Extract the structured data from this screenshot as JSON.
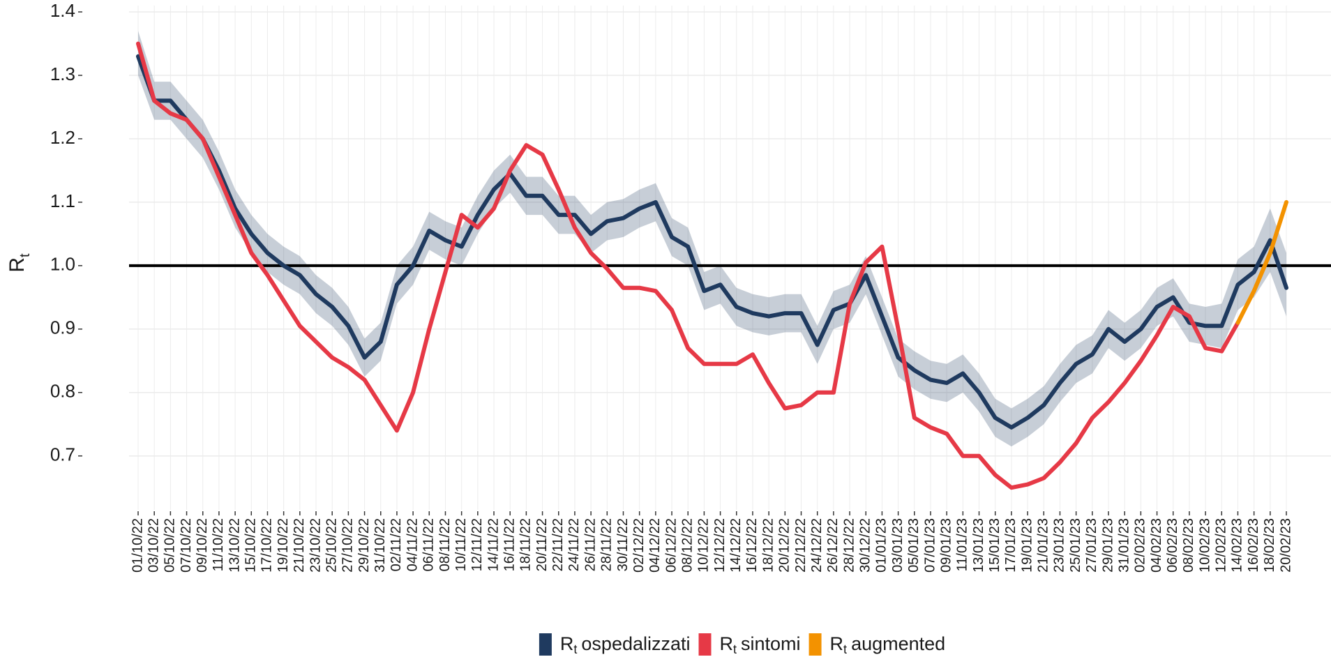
{
  "chart_data": {
    "type": "line",
    "y_label": {
      "text": "R",
      "sub": "t"
    },
    "categories": [
      "01/10/22",
      "03/10/22",
      "05/10/22",
      "07/10/22",
      "09/10/22",
      "11/10/22",
      "13/10/22",
      "15/10/22",
      "17/10/22",
      "19/10/22",
      "21/10/22",
      "23/10/22",
      "25/10/22",
      "27/10/22",
      "29/10/22",
      "31/10/22",
      "02/11/22",
      "04/11/22",
      "06/11/22",
      "08/11/22",
      "10/11/22",
      "12/11/22",
      "14/11/22",
      "16/11/22",
      "18/11/22",
      "20/11/22",
      "22/11/22",
      "24/11/22",
      "26/11/22",
      "28/11/22",
      "30/11/22",
      "02/12/22",
      "04/12/22",
      "06/12/22",
      "08/12/22",
      "10/12/22",
      "12/12/22",
      "14/12/22",
      "16/12/22",
      "18/12/22",
      "20/12/22",
      "22/12/22",
      "24/12/22",
      "26/12/22",
      "28/12/22",
      "30/12/22",
      "01/01/23",
      "03/01/23",
      "05/01/23",
      "07/01/23",
      "09/01/23",
      "11/01/23",
      "13/01/23",
      "15/01/23",
      "17/01/23",
      "19/01/23",
      "21/01/23",
      "23/01/23",
      "25/01/23",
      "27/01/23",
      "29/01/23",
      "31/01/23",
      "02/02/23",
      "04/02/23",
      "06/02/23",
      "08/02/23",
      "10/02/23",
      "12/02/23",
      "14/02/23",
      "16/02/23",
      "18/02/23",
      "20/02/23"
    ],
    "series": [
      {
        "name": {
          "text": "R",
          "sub": "t",
          "rest": "ospedalizzati"
        },
        "color": "#1f3a5f",
        "values": [
          1.33,
          1.26,
          1.26,
          1.23,
          1.2,
          1.15,
          1.09,
          1.05,
          1.02,
          1.0,
          0.985,
          0.955,
          0.935,
          0.905,
          0.855,
          0.88,
          0.97,
          1.0,
          1.055,
          1.04,
          1.03,
          1.08,
          1.12,
          1.145,
          1.11,
          1.11,
          1.08,
          1.08,
          1.05,
          1.07,
          1.075,
          1.09,
          1.1,
          1.045,
          1.03,
          0.96,
          0.97,
          0.935,
          0.925,
          0.92,
          0.925,
          0.925,
          0.875,
          0.93,
          0.94,
          0.985,
          0.92,
          0.855,
          0.835,
          0.82,
          0.815,
          0.83,
          0.8,
          0.76,
          0.745,
          0.76,
          0.78,
          0.815,
          0.845,
          0.86,
          0.9,
          0.88,
          0.9,
          0.935,
          0.95,
          0.91,
          0.905,
          0.905,
          0.97,
          0.99,
          1.04,
          0.965
        ],
        "lower": [
          1.3,
          1.23,
          1.23,
          1.2,
          1.17,
          1.12,
          1.06,
          1.02,
          0.99,
          0.97,
          0.955,
          0.925,
          0.905,
          0.875,
          0.825,
          0.85,
          0.94,
          0.97,
          1.025,
          1.01,
          1.0,
          1.05,
          1.09,
          1.115,
          1.08,
          1.08,
          1.05,
          1.05,
          1.02,
          1.04,
          1.045,
          1.06,
          1.07,
          1.015,
          1.0,
          0.93,
          0.94,
          0.905,
          0.895,
          0.89,
          0.895,
          0.895,
          0.845,
          0.9,
          0.91,
          0.955,
          0.89,
          0.825,
          0.805,
          0.79,
          0.785,
          0.8,
          0.77,
          0.73,
          0.715,
          0.73,
          0.75,
          0.785,
          0.815,
          0.83,
          0.87,
          0.85,
          0.87,
          0.905,
          0.92,
          0.88,
          0.875,
          0.87,
          0.93,
          0.95,
          0.99,
          0.92
        ],
        "upper": [
          1.37,
          1.29,
          1.29,
          1.26,
          1.23,
          1.18,
          1.12,
          1.08,
          1.05,
          1.03,
          1.015,
          0.985,
          0.965,
          0.935,
          0.885,
          0.91,
          1.0,
          1.03,
          1.085,
          1.07,
          1.06,
          1.11,
          1.15,
          1.175,
          1.14,
          1.14,
          1.11,
          1.11,
          1.08,
          1.1,
          1.105,
          1.12,
          1.13,
          1.075,
          1.06,
          0.99,
          1.0,
          0.965,
          0.955,
          0.95,
          0.955,
          0.955,
          0.905,
          0.96,
          0.97,
          1.015,
          0.95,
          0.885,
          0.865,
          0.85,
          0.845,
          0.86,
          0.83,
          0.79,
          0.775,
          0.79,
          0.81,
          0.845,
          0.875,
          0.89,
          0.93,
          0.91,
          0.93,
          0.965,
          0.98,
          0.94,
          0.935,
          0.94,
          1.01,
          1.03,
          1.09,
          1.02
        ]
      },
      {
        "name": {
          "text": "R",
          "sub": "t",
          "rest": "sintomi"
        },
        "color": "#e63946",
        "values": [
          1.35,
          1.26,
          1.24,
          1.23,
          1.2,
          1.14,
          1.08,
          1.02,
          0.985,
          0.945,
          0.905,
          0.88,
          0.855,
          0.84,
          0.82,
          0.78,
          0.74,
          0.8,
          0.9,
          0.99,
          1.08,
          1.06,
          1.09,
          1.15,
          1.19,
          1.175,
          1.12,
          1.06,
          1.02,
          0.995,
          0.965,
          0.965,
          0.96,
          0.93,
          0.87,
          0.845,
          0.845,
          0.845,
          0.86,
          0.815,
          0.775,
          0.78,
          0.8,
          0.8,
          0.94,
          1.005,
          1.03,
          0.9,
          0.76,
          0.745,
          0.735,
          0.7,
          0.7,
          0.67,
          0.65,
          0.655,
          0.665,
          0.69,
          0.72,
          0.76,
          0.785,
          0.815,
          0.85,
          0.89,
          0.935,
          0.92,
          0.87,
          0.865,
          0.91,
          null,
          null,
          null
        ]
      },
      {
        "name": {
          "text": "R",
          "sub": "t",
          "rest": "augmented"
        },
        "color": "#f39200",
        "values": [
          null,
          null,
          null,
          null,
          null,
          null,
          null,
          null,
          null,
          null,
          null,
          null,
          null,
          null,
          null,
          null,
          null,
          null,
          null,
          null,
          null,
          null,
          null,
          null,
          null,
          null,
          null,
          null,
          null,
          null,
          null,
          null,
          null,
          null,
          null,
          null,
          null,
          null,
          null,
          null,
          null,
          null,
          null,
          null,
          null,
          null,
          null,
          null,
          null,
          null,
          null,
          null,
          null,
          null,
          null,
          null,
          null,
          null,
          null,
          null,
          null,
          null,
          null,
          null,
          null,
          null,
          null,
          null,
          0.91,
          0.96,
          1.02,
          1.1
        ]
      }
    ],
    "ylim": [
      0.615,
      1.41
    ],
    "yticks": [
      0.7,
      0.8,
      0.9,
      {
        "value": 1,
        "label": "1.0"
      },
      1.1,
      1.2,
      1.3,
      1.4
    ],
    "hline": 1,
    "grid": true,
    "legend": "bottom"
  }
}
